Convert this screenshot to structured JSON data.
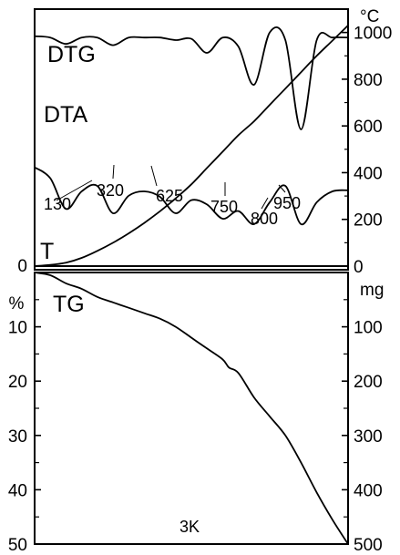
{
  "chart_data": [
    {
      "type": "line",
      "panel": "top",
      "right_axis": {
        "unit": "°C",
        "ticks": [
          "1000",
          "800",
          "600",
          "400",
          "200",
          "0"
        ],
        "ticks_values": [
          1000,
          800,
          600,
          400,
          200,
          0
        ],
        "ylim": [
          0,
          1100
        ]
      },
      "x": [
        0,
        5,
        10,
        15,
        20,
        25,
        30,
        35,
        40,
        45,
        50,
        55,
        60,
        65,
        70,
        75,
        80,
        85,
        90,
        95,
        100
      ],
      "series": [
        {
          "name": "DTG",
          "relative_y": [
            0.93,
            0.92,
            0.87,
            0.92,
            0.92,
            0.86,
            0.92,
            0.92,
            0.92,
            0.9,
            0.91,
            0.8,
            0.92,
            0.85,
            0.55,
            0.96,
            0.9,
            0.2,
            0.9,
            0.92,
            0.92
          ]
        },
        {
          "name": "DTA",
          "relative_y": [
            0.72,
            0.62,
            0.34,
            0.5,
            0.55,
            0.3,
            0.46,
            0.5,
            0.45,
            0.3,
            0.42,
            0.38,
            0.25,
            0.32,
            0.2,
            0.4,
            0.55,
            0.2,
            0.4,
            0.5,
            0.51
          ]
        },
        {
          "name": "T",
          "values": [
            0,
            5,
            15,
            35,
            65,
            100,
            140,
            185,
            235,
            290,
            350,
            420,
            490,
            560,
            620,
            690,
            760,
            830,
            900,
            965,
            1030
          ]
        }
      ],
      "peak_labels": [
        "130",
        "320",
        "625",
        "750",
        "800",
        "950"
      ]
    },
    {
      "type": "line",
      "panel": "bottom",
      "left_axis": {
        "unit": "%",
        "ticks": [
          "0",
          "10",
          "20",
          "30",
          "40",
          "50"
        ],
        "ticks_values": [
          0,
          10,
          20,
          30,
          40,
          50
        ],
        "ylim": [
          0,
          50
        ],
        "inverted": true
      },
      "right_axis": {
        "unit": "mg",
        "ticks": [
          "100",
          "200",
          "300",
          "400",
          "500"
        ],
        "ticks_values": [
          100,
          200,
          300,
          400,
          500
        ],
        "ylim": [
          0,
          500
        ],
        "inverted": true
      },
      "x": [
        0,
        5,
        10,
        15,
        20,
        25,
        30,
        35,
        40,
        45,
        50,
        55,
        60,
        62,
        65,
        70,
        75,
        80,
        85,
        90,
        95,
        100
      ],
      "series": [
        {
          "name": "TG",
          "values": [
            0,
            0.5,
            2,
            3,
            4.5,
            5.5,
            6.5,
            7.5,
            8.5,
            10,
            12,
            14,
            16,
            17.5,
            18.5,
            23,
            26.5,
            30,
            35,
            40.5,
            45.5,
            50
          ]
        }
      ],
      "label": "3K"
    }
  ]
}
